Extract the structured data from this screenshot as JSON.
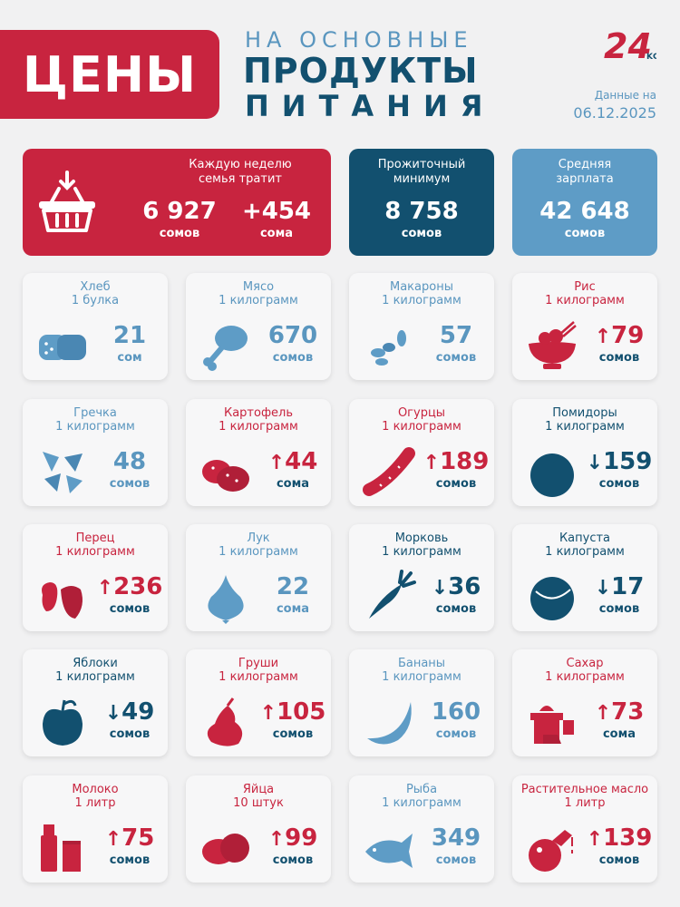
{
  "header": {
    "banner": "ЦЕНЫ",
    "line1": "НА ОСНОВНЫЕ",
    "line2": "ПРОДУКТЫ",
    "line3": "ПИТАНИЯ",
    "logo_text": "24",
    "logo_suffix": "KG",
    "date_label": "Данные на",
    "date_value": "06.12.2025"
  },
  "summary": {
    "weekly": {
      "label1": "Каждую неделю",
      "label2": "семья тратит",
      "value": "6 927",
      "unit": "сомов",
      "change": "+454",
      "change_unit": "сома"
    },
    "minimum": {
      "label1": "Прожиточный",
      "label2": "минимум",
      "value": "8 758",
      "unit": "сомов"
    },
    "salary": {
      "label1": "Средняя",
      "label2": "зарплата",
      "value": "42 648",
      "unit": "сомов"
    }
  },
  "colors": {
    "red": "#c8243f",
    "navy": "#12506f",
    "lightblue": "#5e9cc6"
  },
  "products": [
    {
      "name": "Хлеб",
      "qty": "1 булка",
      "price": "21",
      "unit": "сом",
      "trend": "neutral",
      "arrow": "",
      "icon": "bread-icon"
    },
    {
      "name": "Мясо",
      "qty": "1 килограмм",
      "price": "670",
      "unit": "сомов",
      "trend": "neutral",
      "arrow": "",
      "icon": "meat-icon"
    },
    {
      "name": "Макароны",
      "qty": "1 килограмм",
      "price": "57",
      "unit": "сомов",
      "trend": "neutral",
      "arrow": "",
      "icon": "pasta-icon"
    },
    {
      "name": "Рис",
      "qty": "1 килограмм",
      "price": "79",
      "unit": "сомов",
      "trend": "up",
      "arrow": "↑",
      "icon": "rice-icon"
    },
    {
      "name": "Гречка",
      "qty": "1 килограмм",
      "price": "48",
      "unit": "сомов",
      "trend": "neutral",
      "arrow": "",
      "icon": "buckwheat-icon"
    },
    {
      "name": "Картофель",
      "qty": "1 килограмм",
      "price": "44",
      "unit": "сома",
      "trend": "up",
      "arrow": "↑",
      "icon": "potato-icon"
    },
    {
      "name": "Огурцы",
      "qty": "1 килограмм",
      "price": "189",
      "unit": "сомов",
      "trend": "up",
      "arrow": "↑",
      "icon": "cucumber-icon"
    },
    {
      "name": "Помидоры",
      "qty": "1 килограмм",
      "price": "159",
      "unit": "сомов",
      "trend": "down",
      "arrow": "↓",
      "icon": "tomato-icon"
    },
    {
      "name": "Перец",
      "qty": "1 килограмм",
      "price": "236",
      "unit": "сомов",
      "trend": "up",
      "arrow": "↑",
      "icon": "pepper-icon"
    },
    {
      "name": "Лук",
      "qty": "1 килограмм",
      "price": "22",
      "unit": "сома",
      "trend": "neutral",
      "arrow": "",
      "icon": "onion-icon"
    },
    {
      "name": "Морковь",
      "qty": "1 килограмм",
      "price": "36",
      "unit": "сомов",
      "trend": "down",
      "arrow": "↓",
      "icon": "carrot-icon"
    },
    {
      "name": "Капуста",
      "qty": "1 килограмм",
      "price": "17",
      "unit": "сомов",
      "trend": "down",
      "arrow": "↓",
      "icon": "cabbage-icon"
    },
    {
      "name": "Яблоки",
      "qty": "1 килограмм",
      "price": "49",
      "unit": "сомов",
      "trend": "down",
      "arrow": "↓",
      "icon": "apple-icon"
    },
    {
      "name": "Груши",
      "qty": "1 килограмм",
      "price": "105",
      "unit": "сомов",
      "trend": "up",
      "arrow": "↑",
      "icon": "pear-icon"
    },
    {
      "name": "Бананы",
      "qty": "1 килограмм",
      "price": "160",
      "unit": "сомов",
      "trend": "neutral",
      "arrow": "",
      "icon": "banana-icon"
    },
    {
      "name": "Сахар",
      "qty": "1 килограмм",
      "price": "73",
      "unit": "сома",
      "trend": "up",
      "arrow": "↑",
      "icon": "sugar-icon"
    },
    {
      "name": "Молоко",
      "qty": "1 литр",
      "price": "75",
      "unit": "сомов",
      "trend": "up",
      "arrow": "↑",
      "icon": "milk-icon"
    },
    {
      "name": "Яйца",
      "qty": "10 штук",
      "price": "99",
      "unit": "сомов",
      "trend": "up",
      "arrow": "↑",
      "icon": "eggs-icon"
    },
    {
      "name": "Рыба",
      "qty": "1 килограмм",
      "price": "349",
      "unit": "сомов",
      "trend": "neutral",
      "arrow": "",
      "icon": "fish-icon"
    },
    {
      "name": "Растительное масло",
      "qty": "1 литр",
      "price": "139",
      "unit": "сомов",
      "trend": "up",
      "arrow": "↑",
      "icon": "oil-icon"
    }
  ]
}
